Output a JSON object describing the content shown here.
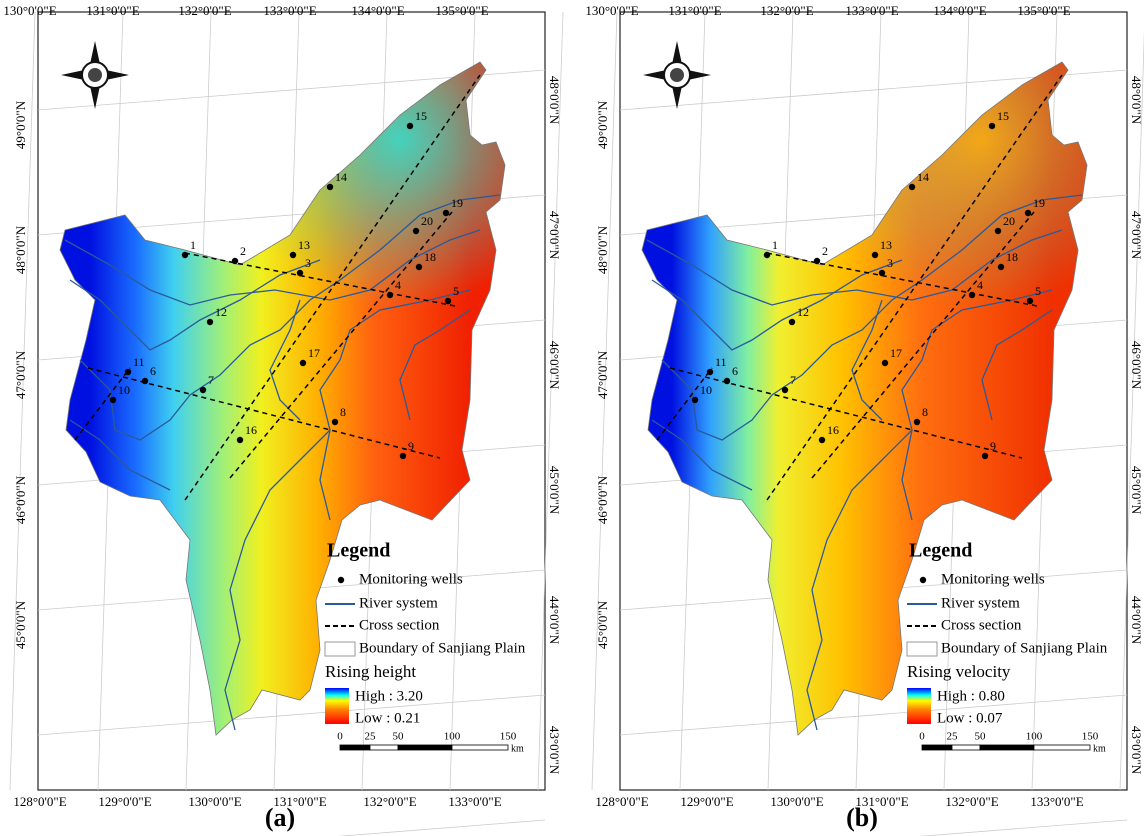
{
  "panels": [
    {
      "label": "(a)",
      "top_labels": [
        "130°0'0\"E",
        "131°0'0\"E",
        "132°0'0\"E",
        "133°0'0\"E",
        "134°0'0\"E",
        "135°0'0\"E"
      ],
      "bottom_labels": [
        "128°0'0\"E",
        "129°0'0\"E",
        "130°0'0\"E",
        "131°0'0\"E",
        "132°0'0\"E",
        "133°0'0\"E"
      ],
      "left_labels": [
        "49°0'0\"N",
        "48°0'0\"N",
        "47°0'0\"N",
        "46°0'0\"N",
        "45°0'0\"N"
      ],
      "right_labels": [
        "48°0'0\"N",
        "47°0'0\"N",
        "46°0'0\"N",
        "45°0'0\"N",
        "44°0'0\"N",
        "43°0'0\"N"
      ],
      "wells": [
        "1",
        "2",
        "3",
        "4",
        "5",
        "6",
        "7",
        "8",
        "9",
        "10",
        "11",
        "12",
        "13",
        "14",
        "15",
        "16",
        "17",
        "18",
        "19",
        "20"
      ],
      "legend": {
        "title": "Legend",
        "items": [
          "Monitoring wells",
          "River system",
          "Cross section",
          "Boundary of Sanjiang Plain"
        ],
        "ramp_title": "Rising height",
        "high": "High : 3.20",
        "low": "Low : 0.21"
      },
      "scale": {
        "ticks": [
          "0",
          "25",
          "50",
          "100",
          "150"
        ],
        "unit": "km"
      }
    },
    {
      "label": "(b)",
      "top_labels": [
        "130°0'0\"E",
        "131°0'0\"E",
        "132°0'0\"E",
        "133°0'0\"E",
        "134°0'0\"E",
        "135°0'0\"E"
      ],
      "bottom_labels": [
        "128°0'0\"E",
        "129°0'0\"E",
        "130°0'0\"E",
        "131°0'0\"E",
        "132°0'0\"E",
        "133°0'0\"E"
      ],
      "left_labels": [
        "49°0'0\"N",
        "48°0'0\"N",
        "47°0'0\"N",
        "46°0'0\"N",
        "45°0'0\"N"
      ],
      "right_labels": [
        "48°0'0\"N",
        "47°0'0\"N",
        "46°0'0\"N",
        "45°0'0\"N",
        "44°0'0\"N",
        "43°0'0\"N"
      ],
      "wells": [
        "1",
        "2",
        "3",
        "4",
        "5",
        "6",
        "7",
        "8",
        "9",
        "10",
        "11",
        "12",
        "13",
        "14",
        "15",
        "16",
        "17",
        "18",
        "19",
        "20"
      ],
      "legend": {
        "title": "Legend",
        "items": [
          "Monitoring wells",
          "River system",
          "Cross section",
          "Boundary of Sanjiang Plain"
        ],
        "ramp_title": "Rising velocity",
        "high": "High : 0.80",
        "low": "Low : 0.07"
      },
      "scale": {
        "ticks": [
          "0",
          "25",
          "50",
          "100",
          "150"
        ],
        "unit": "km"
      }
    }
  ]
}
